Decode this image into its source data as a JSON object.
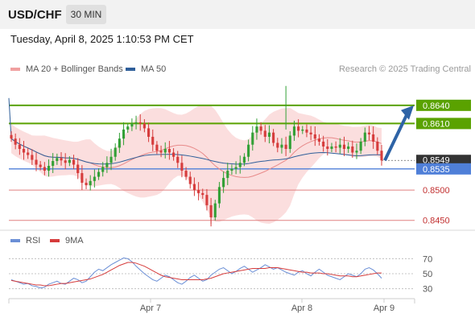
{
  "header": {
    "symbol": "USD/CHF",
    "timeframe": "30 MIN",
    "timestamp": "Tuesday, April 8, 2025 1:10:53 PM CET"
  },
  "legend": {
    "ma20_bb_label": "MA 20 + Bollinger Bands",
    "ma50_label": "MA 50",
    "credit": "Research © 2025 Trading Central"
  },
  "rsi_legend": {
    "rsi_label": "RSI",
    "ma9_label": "9MA"
  },
  "colors": {
    "ma20": "#e88a8a",
    "bollinger_fill": "#fbdada",
    "ma50": "#2f5f9a",
    "resistance": "#5aa200",
    "support": "#4f7fd8",
    "weak_level": "#e08080",
    "bull_candle": "#33a036",
    "bear_candle": "#d63c3c",
    "arrow": "#2e63a6",
    "rsi": "#6b8fd6",
    "rsi_ma": "#d63c3c"
  },
  "chart_data": [
    {
      "type": "candlestick",
      "name": "price",
      "x_labels": [
        "Apr 7",
        "Apr 8",
        "Apr 9"
      ],
      "y_range": [
        0.8435,
        0.8685
      ],
      "levels": [
        {
          "value": 0.864,
          "label": "0.8640",
          "kind": "resistance"
        },
        {
          "value": 0.861,
          "label": "0.8610",
          "kind": "resistance"
        },
        {
          "value": 0.8549,
          "label": "0.8549",
          "kind": "last_price"
        },
        {
          "value": 0.8535,
          "label": "0.8535",
          "kind": "pivot"
        },
        {
          "value": 0.85,
          "label": "0.8500",
          "kind": "support"
        },
        {
          "value": 0.845,
          "label": "0.8450",
          "kind": "support"
        }
      ],
      "forecast": {
        "from": 0.8549,
        "to": 0.864,
        "direction": "up"
      },
      "closes": [
        0.8585,
        0.8575,
        0.8568,
        0.8562,
        0.8558,
        0.855,
        0.8542,
        0.8538,
        0.8532,
        0.854,
        0.8548,
        0.8553,
        0.8549,
        0.8545,
        0.855,
        0.8542,
        0.8528,
        0.8512,
        0.8508,
        0.8515,
        0.8522,
        0.853,
        0.8538,
        0.8545,
        0.8555,
        0.857,
        0.8585,
        0.86,
        0.8605,
        0.861,
        0.8612,
        0.861,
        0.8602,
        0.8588,
        0.8575,
        0.8565,
        0.8562,
        0.8568,
        0.8562,
        0.8555,
        0.8545,
        0.8532,
        0.8522,
        0.851,
        0.85,
        0.8495,
        0.8492,
        0.8475,
        0.8455,
        0.8478,
        0.8505,
        0.852,
        0.8532,
        0.8535,
        0.8538,
        0.8545,
        0.8555,
        0.8575,
        0.8595,
        0.8605,
        0.8598,
        0.8588,
        0.8595,
        0.8578,
        0.857,
        0.8575,
        0.8568,
        0.859,
        0.8605,
        0.8598,
        0.86,
        0.8595,
        0.8592,
        0.8585,
        0.858,
        0.8572,
        0.8568,
        0.8572,
        0.857,
        0.8575,
        0.8568,
        0.8572,
        0.8562,
        0.8565,
        0.858,
        0.8595,
        0.8592,
        0.858,
        0.8565,
        0.8549
      ]
    },
    {
      "type": "line",
      "name": "RSI",
      "y_range": [
        20,
        80
      ],
      "y_ticks": [
        70,
        50,
        30
      ],
      "series": [
        {
          "name": "RSI",
          "values": [
            42,
            40,
            38,
            36,
            37,
            34,
            33,
            31,
            32,
            36,
            38,
            40,
            37,
            36,
            40,
            44,
            42,
            38,
            40,
            46,
            52,
            56,
            54,
            58,
            62,
            65,
            68,
            71,
            70,
            66,
            60,
            55,
            50,
            46,
            42,
            40,
            44,
            48,
            46,
            42,
            38,
            36,
            40,
            45,
            48,
            44,
            40,
            42,
            48,
            52,
            56,
            58,
            54,
            50,
            53,
            57,
            60,
            56,
            52,
            55,
            58,
            62,
            59,
            56,
            58,
            55,
            52,
            50,
            48,
            52,
            54,
            50,
            47,
            52,
            56,
            52,
            48,
            46,
            44,
            42,
            46,
            50,
            48,
            46,
            50,
            56,
            58,
            55,
            50,
            44
          ]
        },
        {
          "name": "9MA",
          "values": [
            41,
            40,
            39,
            38,
            37,
            36,
            35,
            35,
            34,
            34,
            35,
            36,
            37,
            37,
            38,
            39,
            40,
            41,
            42,
            43,
            45,
            47,
            49,
            52,
            55,
            58,
            61,
            63,
            65,
            65,
            64,
            62,
            60,
            57,
            54,
            51,
            48,
            46,
            45,
            44,
            43,
            42,
            42,
            42,
            42,
            42,
            42,
            43,
            44,
            46,
            48,
            50,
            51,
            52,
            53,
            54,
            55,
            56,
            57,
            57,
            57,
            57,
            58,
            58,
            58,
            57,
            56,
            55,
            54,
            53,
            52,
            52,
            51,
            51,
            51,
            50,
            50,
            49,
            48,
            47,
            47,
            47,
            46,
            46,
            47,
            48,
            49,
            50,
            51,
            51
          ]
        }
      ]
    }
  ]
}
